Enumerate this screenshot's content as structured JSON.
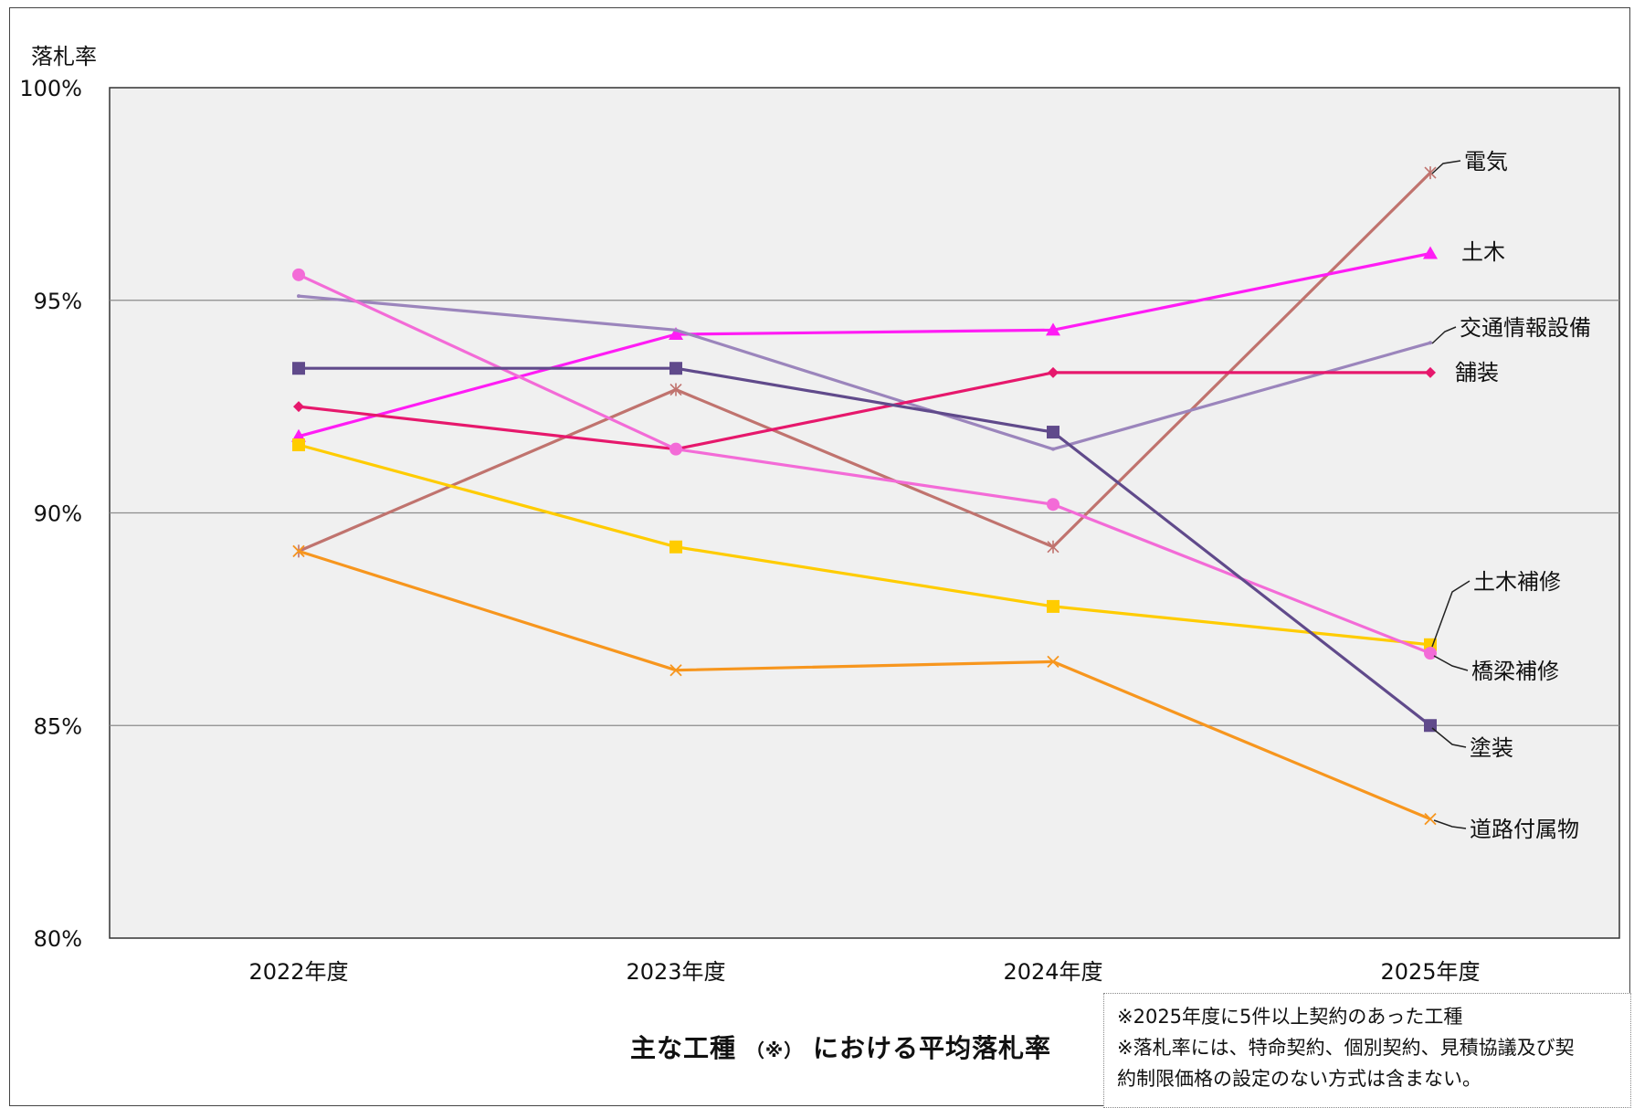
{
  "chart_data": {
    "type": "line",
    "title": "主な工種",
    "title_note": "（※）",
    "title_suffix": "における平均落札率",
    "ylabel": "落札率",
    "ylim": [
      80,
      100
    ],
    "yticks": [
      "80%",
      "85%",
      "90%",
      "95%",
      "100%"
    ],
    "grid": true,
    "categories": [
      "2022年度",
      "2023年度",
      "2024年度",
      "2025年度"
    ],
    "series": [
      {
        "name": "電気",
        "color": "#C0736E",
        "marker": "star",
        "values": [
          89.1,
          92.9,
          89.2,
          98.0
        ]
      },
      {
        "name": "土木",
        "color": "#FF1CF5",
        "marker": "triangle",
        "values": [
          91.8,
          94.2,
          94.3,
          96.1
        ]
      },
      {
        "name": "交通情報設備",
        "color": "#9B85BC",
        "marker": "none",
        "values": [
          95.1,
          94.3,
          91.5,
          94.0
        ]
      },
      {
        "name": "舗装",
        "color": "#E6186C",
        "marker": "diamond",
        "values": [
          92.5,
          91.5,
          93.3,
          93.3
        ]
      },
      {
        "name": "土木補修",
        "color": "#FFCC00",
        "marker": "square",
        "values": [
          91.6,
          89.2,
          87.8,
          86.9
        ]
      },
      {
        "name": "橋梁補修",
        "color": "#F36BD7",
        "marker": "circle",
        "values": [
          95.6,
          91.5,
          90.2,
          86.7
        ]
      },
      {
        "name": "塗装",
        "color": "#604A8B",
        "marker": "square",
        "values": [
          93.4,
          93.4,
          91.9,
          85.0
        ]
      },
      {
        "name": "道路付属物",
        "color": "#F7961E",
        "marker": "x",
        "values": [
          89.1,
          86.3,
          86.5,
          82.8
        ]
      }
    ],
    "footnotes": [
      "※2025年度に5件以上契約のあった工種",
      "※落札率には、特命契約、個別契約、見積協議及び契",
      "約制限価格の設定のない方式は含まない。"
    ]
  }
}
